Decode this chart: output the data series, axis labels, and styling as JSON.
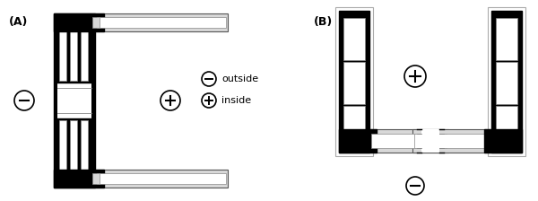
{
  "figsize": [
    6.0,
    2.24
  ],
  "dpi": 100,
  "bg_color": "#ffffff",
  "label_A": "(A)",
  "label_B": "(B)",
  "legend_minus_text": "outside",
  "legend_plus_text": "inside",
  "col_black": "#000000",
  "col_light": "#d8d8d8",
  "col_white": "#ffffff",
  "col_dark_gray": "#555555",
  "col_mid_gray": "#888888"
}
